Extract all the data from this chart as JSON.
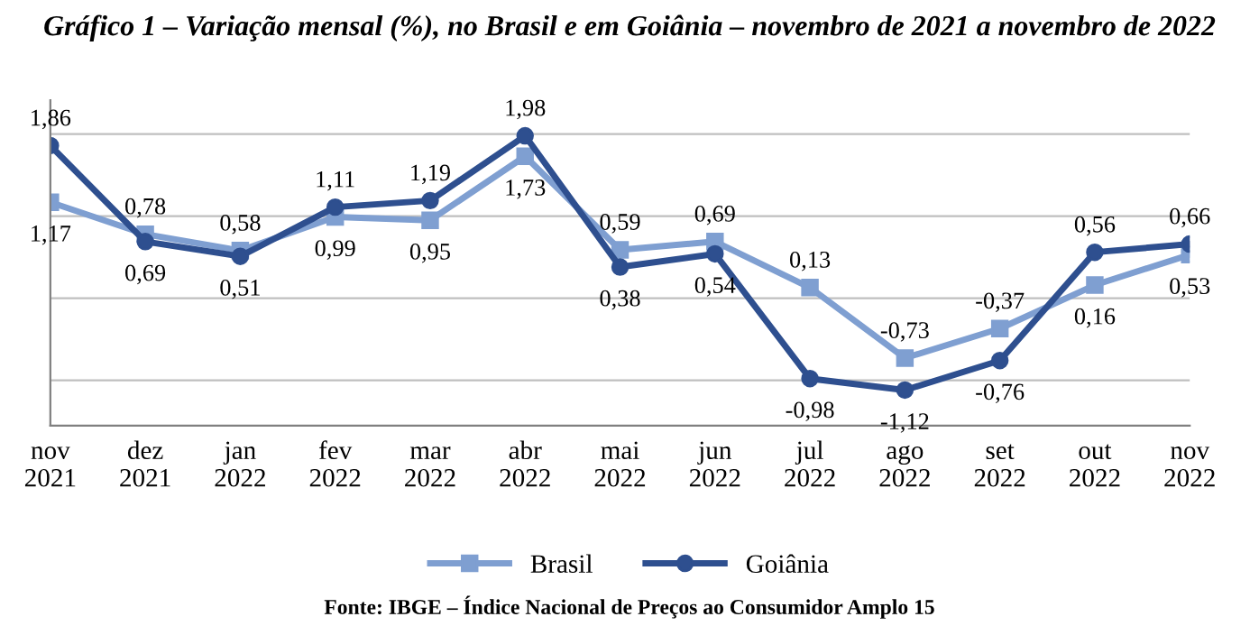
{
  "chart_data": {
    "type": "line",
    "title": "Gráfico 1 – Variação mensal (%), no Brasil e em Goiânia – novembro de 2021 a novembro de 2022",
    "categories": [
      "nov\n2021",
      "dez\n2021",
      "jan\n2022",
      "fev\n2022",
      "mar\n2022",
      "abr\n2022",
      "mai\n2022",
      "jun\n2022",
      "jul\n2022",
      "ago\n2022",
      "set\n2022",
      "out\n2022",
      "nov\n2022"
    ],
    "series": [
      {
        "name": "Brasil",
        "color": "#7f9fd1",
        "marker": "square",
        "values": [
          1.17,
          0.78,
          0.58,
          0.99,
          0.95,
          1.73,
          0.59,
          0.69,
          0.13,
          -0.73,
          -0.37,
          0.16,
          0.53
        ],
        "value_labels": [
          "1,17",
          "0,78",
          "0,58",
          "0,99",
          "0,95",
          "1,73",
          "0,59",
          "0,69",
          "0,13",
          "-0,73",
          "-0,37",
          "0,16",
          "0,53"
        ]
      },
      {
        "name": "Goiânia",
        "color": "#2e4f8f",
        "marker": "circle",
        "values": [
          1.86,
          0.69,
          0.51,
          1.11,
          1.19,
          1.98,
          0.38,
          0.54,
          -0.98,
          -1.12,
          -0.76,
          0.56,
          0.66
        ],
        "value_labels": [
          "1,86",
          "0,69",
          "0,51",
          "1,11",
          "1,19",
          "1,98",
          "0,38",
          "0,54",
          "-0,98",
          "-1,12",
          "-0,76",
          "0,56",
          "0,66"
        ]
      }
    ],
    "grid": "y",
    "legend": "bottom",
    "line_style": "solid",
    "annotations": [
      "Fonte: IBGE – Índice Nacional de Preços ao Consumidor Amplo 15"
    ]
  }
}
